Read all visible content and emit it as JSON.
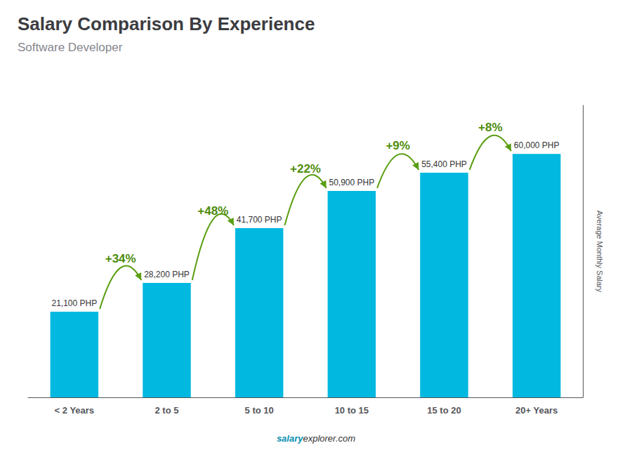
{
  "chart_data": {
    "type": "bar",
    "title": "Salary Comparison By Experience",
    "subtitle": "Software Developer",
    "ylabel": "Average Monthly Salary",
    "categories": [
      "< 2 Years",
      "2 to 5",
      "5 to 10",
      "10 to 15",
      "15 to 20",
      "20+ Years"
    ],
    "values": [
      21100,
      28200,
      41700,
      50900,
      55400,
      60000
    ],
    "value_labels": [
      "21,100 PHP",
      "28,200 PHP",
      "41,700 PHP",
      "50,900 PHP",
      "55,400 PHP",
      "60,000 PHP"
    ],
    "data_labels": true,
    "annotations": [
      "+34%",
      "+48%",
      "+22%",
      "+9%",
      "+8%"
    ],
    "footer": [
      "salary",
      "explorer.com"
    ],
    "color": "#00b8e0",
    "ylim": [
      0,
      72000
    ],
    "grid": false,
    "tick_labels": "x"
  }
}
